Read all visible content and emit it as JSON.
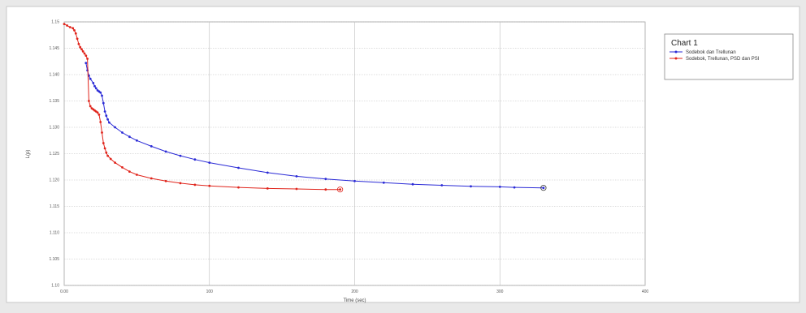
{
  "chart_data": {
    "type": "line",
    "title": "",
    "xlabel": "Time (sec)",
    "ylabel": "L(p)",
    "xlim": [
      0,
      400
    ],
    "ylim": [
      1.1,
      1.15
    ],
    "x_ticks": [
      "0.00",
      "100",
      "200",
      "300",
      "400"
    ],
    "y_ticks": [
      "1.10",
      "1.105",
      "1.110",
      "1.115",
      "1.120",
      "1.125",
      "1.130",
      "1.135",
      "1.140",
      "1.145",
      "1.15"
    ],
    "grid": true,
    "legend": {
      "title": "Chart 1",
      "placement": "right",
      "entries": [
        "Sodebok dan Trellunan",
        "Sodebok, Trellunan, PSD dan PSI"
      ]
    },
    "series": [
      {
        "name": "Sodebok dan Trellunan",
        "color": "#2a2ad6",
        "x": [
          15,
          16,
          17,
          18,
          20,
          21,
          22,
          23,
          24,
          25,
          26,
          27,
          28,
          29,
          30,
          31,
          35,
          40,
          45,
          50,
          60,
          70,
          80,
          90,
          100,
          120,
          140,
          160,
          180,
          200,
          220,
          240,
          260,
          280,
          300,
          310,
          330
        ],
        "y": [
          1.1422,
          1.1408,
          1.1398,
          1.1392,
          1.1384,
          1.1378,
          1.1374,
          1.137,
          1.1368,
          1.1366,
          1.136,
          1.1346,
          1.133,
          1.1322,
          1.1315,
          1.1309,
          1.13,
          1.129,
          1.1282,
          1.1275,
          1.1264,
          1.1254,
          1.1246,
          1.1239,
          1.1233,
          1.1223,
          1.1214,
          1.1207,
          1.1202,
          1.1198,
          1.1195,
          1.1192,
          1.119,
          1.1188,
          1.1187,
          1.1186,
          1.1185
        ]
      },
      {
        "name": "Sodebok, Trellunan, PSD dan PSI",
        "color": "#e0241b",
        "x": [
          0,
          2,
          4,
          6,
          7,
          8,
          9,
          10,
          11,
          12,
          13,
          14,
          15,
          16,
          17,
          18,
          19,
          20,
          21,
          22,
          23,
          24,
          25,
          26,
          27,
          28,
          29,
          30,
          32,
          35,
          40,
          45,
          50,
          60,
          70,
          80,
          90,
          100,
          120,
          140,
          160,
          180,
          190
        ],
        "y": [
          1.1496,
          1.1493,
          1.149,
          1.1488,
          1.1484,
          1.1478,
          1.1468,
          1.1458,
          1.1452,
          1.1448,
          1.1444,
          1.144,
          1.1436,
          1.143,
          1.135,
          1.134,
          1.1336,
          1.1334,
          1.1332,
          1.133,
          1.1328,
          1.1324,
          1.131,
          1.129,
          1.127,
          1.126,
          1.1252,
          1.1246,
          1.124,
          1.1233,
          1.1224,
          1.1216,
          1.121,
          1.1203,
          1.1198,
          1.1194,
          1.1191,
          1.1189,
          1.1186,
          1.1184,
          1.1183,
          1.1182,
          1.1182
        ]
      }
    ]
  }
}
